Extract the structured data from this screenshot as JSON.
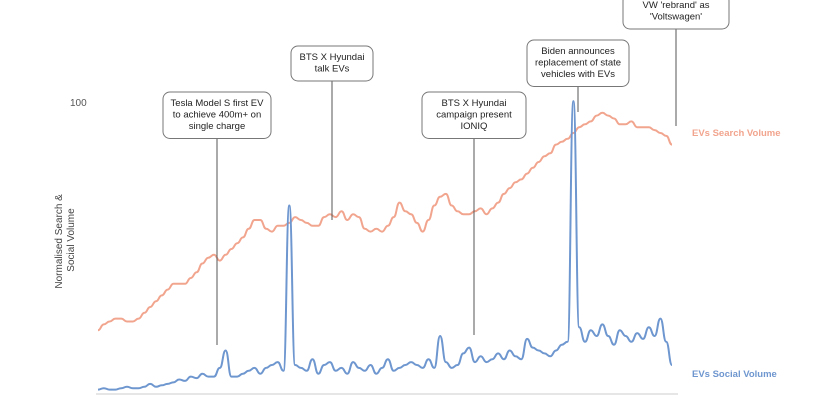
{
  "chart_data": {
    "type": "line",
    "ylabel": [
      "Normalised Search &",
      "Social Volume"
    ],
    "y_ticks": [
      "100"
    ],
    "ylim": [
      0,
      100
    ],
    "x_count": 100,
    "grid": false,
    "series": [
      {
        "name": "EVs Search Volume",
        "color": "#f2a58e",
        "values": [
          22,
          24,
          25,
          26,
          26,
          25,
          25,
          26,
          28,
          30,
          32,
          34,
          36,
          38,
          38,
          38,
          40,
          42,
          45,
          47,
          48,
          46,
          48,
          50,
          52,
          54,
          57,
          60,
          60,
          57,
          56,
          58,
          58,
          59,
          61,
          60,
          59,
          58,
          58,
          61,
          62,
          61,
          63,
          60,
          62,
          61,
          57,
          56,
          57,
          56,
          58,
          61,
          66,
          63,
          62,
          59,
          56,
          60,
          65,
          68,
          69,
          65,
          63,
          62,
          62,
          63,
          64,
          62,
          64,
          66,
          69,
          71,
          73,
          74,
          76,
          78,
          80,
          82,
          83,
          86,
          87,
          88,
          90,
          92,
          93,
          94,
          96,
          97,
          96,
          95,
          93,
          93,
          94,
          92,
          92,
          92,
          91,
          90,
          89,
          86
        ]
      },
      {
        "name": "EVs Social Volume",
        "color": "#6e96cf",
        "values": [
          1.5,
          2,
          1.5,
          1.5,
          2,
          2.5,
          2,
          2,
          2.5,
          3.5,
          2.5,
          3,
          3.5,
          4,
          5,
          4.5,
          6,
          5.5,
          7,
          6,
          6,
          9,
          15,
          6,
          6,
          7,
          8,
          9,
          7,
          9,
          10,
          11,
          8,
          65,
          10,
          9,
          8,
          12,
          7,
          10,
          11,
          8,
          9,
          7,
          11,
          9,
          8,
          10,
          7,
          9,
          12,
          8,
          9,
          10,
          11,
          10,
          9,
          12,
          9,
          20,
          11,
          9,
          10,
          14,
          16,
          11,
          13,
          11,
          12,
          14,
          12,
          15,
          13,
          12,
          19,
          16,
          15,
          14,
          13,
          15,
          17,
          18,
          101,
          23,
          18,
          22,
          20,
          24,
          20,
          17,
          22,
          20,
          18,
          21,
          19,
          23,
          20,
          26,
          18,
          10
        ]
      }
    ],
    "annotations": [
      {
        "lines": [
          "Tesla Model S first EV",
          "to achieve 400m+ on",
          "single charge"
        ]
      },
      {
        "lines": [
          "BTS X Hyundai",
          "talk EVs"
        ]
      },
      {
        "lines": [
          "BTS X Hyundai",
          "campaign present",
          "IONIQ"
        ]
      },
      {
        "lines": [
          "Biden announces",
          "replacement of state",
          "vehicles with EVs"
        ]
      },
      {
        "lines": [
          "VW 'rebrand' as",
          "'Voltswagen'"
        ]
      }
    ]
  }
}
